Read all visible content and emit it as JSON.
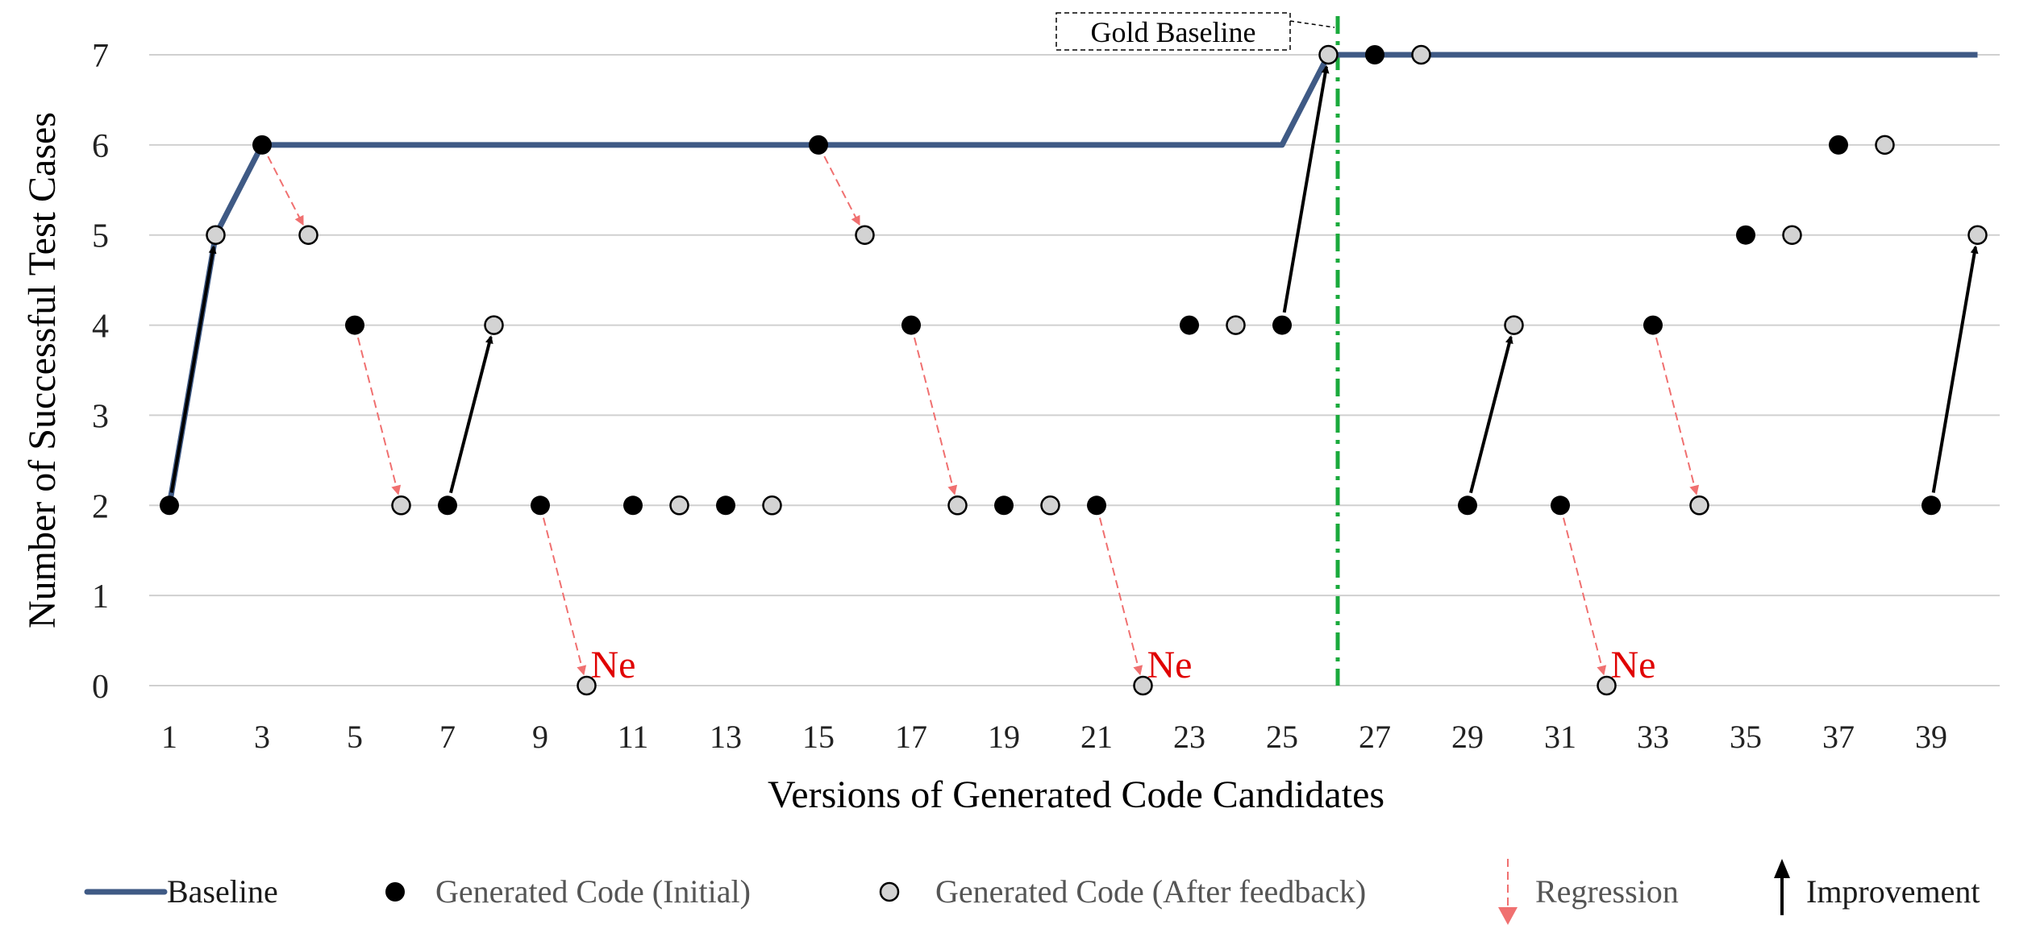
{
  "chart_data": {
    "type": "scatter",
    "xlabel": "Versions of Generated Code Candidates",
    "ylabel": "Number of Successful Test Cases",
    "xlim": [
      0.5,
      40.6
    ],
    "ylim": [
      0,
      7
    ],
    "x_ticks": [
      1,
      3,
      5,
      7,
      9,
      11,
      13,
      15,
      17,
      19,
      21,
      23,
      25,
      27,
      29,
      31,
      33,
      35,
      37,
      39
    ],
    "y_ticks": [
      0,
      1,
      2,
      3,
      4,
      5,
      6,
      7
    ],
    "grid": "horizontal",
    "baseline": {
      "name": "Baseline",
      "color": "#3f5a85",
      "x": [
        1,
        2,
        3,
        25,
        26,
        40
      ],
      "y": [
        2,
        5,
        6,
        6,
        7,
        7
      ]
    },
    "initial": {
      "name": "Generated Code (Initial)",
      "color": "#000000",
      "x": [
        1,
        3,
        5,
        7,
        9,
        11,
        13,
        15,
        17,
        19,
        21,
        23,
        25,
        27,
        29,
        31,
        33,
        35,
        37,
        39
      ],
      "y": [
        2,
        6,
        4,
        2,
        2,
        2,
        2,
        6,
        4,
        2,
        2,
        4,
        4,
        7,
        2,
        2,
        4,
        5,
        6,
        2
      ]
    },
    "after_feedback": {
      "name": "Generated Code (After feedback)",
      "color": "#d3d3d3",
      "x": [
        2,
        4,
        6,
        8,
        10,
        12,
        14,
        16,
        18,
        20,
        22,
        24,
        26,
        28,
        30,
        32,
        34,
        36,
        38,
        40
      ],
      "y": [
        5,
        5,
        2,
        4,
        0,
        2,
        2,
        5,
        2,
        2,
        0,
        4,
        7,
        7,
        4,
        0,
        2,
        5,
        6,
        5
      ]
    },
    "regressions": {
      "name": "Regression",
      "color": "#f07070",
      "arrows": [
        {
          "from": [
            3,
            6
          ],
          "to": [
            4,
            5
          ]
        },
        {
          "from": [
            5,
            4
          ],
          "to": [
            6,
            2
          ]
        },
        {
          "from": [
            9,
            2
          ],
          "to": [
            10,
            0
          ]
        },
        {
          "from": [
            15,
            6
          ],
          "to": [
            16,
            5
          ]
        },
        {
          "from": [
            17,
            4
          ],
          "to": [
            18,
            2
          ]
        },
        {
          "from": [
            21,
            2
          ],
          "to": [
            22,
            0
          ]
        },
        {
          "from": [
            31,
            2
          ],
          "to": [
            32,
            0
          ]
        },
        {
          "from": [
            33,
            4
          ],
          "to": [
            34,
            2
          ]
        }
      ]
    },
    "improvements": {
      "name": "Improvement",
      "color": "#000000",
      "arrows": [
        {
          "from": [
            1,
            2
          ],
          "to": [
            2,
            5
          ]
        },
        {
          "from": [
            7,
            2
          ],
          "to": [
            8,
            4
          ]
        },
        {
          "from": [
            25,
            4
          ],
          "to": [
            26,
            7
          ]
        },
        {
          "from": [
            29,
            2
          ],
          "to": [
            30,
            4
          ]
        },
        {
          "from": [
            39,
            2
          ],
          "to": [
            40,
            5
          ]
        }
      ]
    },
    "annotations": {
      "ne_label": "Ne",
      "ne_color": "#e00000",
      "ne_points": [
        [
          10,
          0
        ],
        [
          22,
          0
        ],
        [
          32,
          0
        ]
      ],
      "gold_label": "Gold Baseline",
      "gold_x": 26.2,
      "gold_color": "#1aaa3c"
    },
    "legend": {
      "placement": "bottom",
      "items": [
        {
          "kind": "line",
          "label": "Baseline"
        },
        {
          "kind": "initial",
          "label": "Generated Code (Initial)"
        },
        {
          "kind": "after",
          "label": "Generated Code (After feedback)"
        },
        {
          "kind": "regression",
          "label": "Regression"
        },
        {
          "kind": "improvement",
          "label": "Improvement"
        }
      ]
    }
  }
}
